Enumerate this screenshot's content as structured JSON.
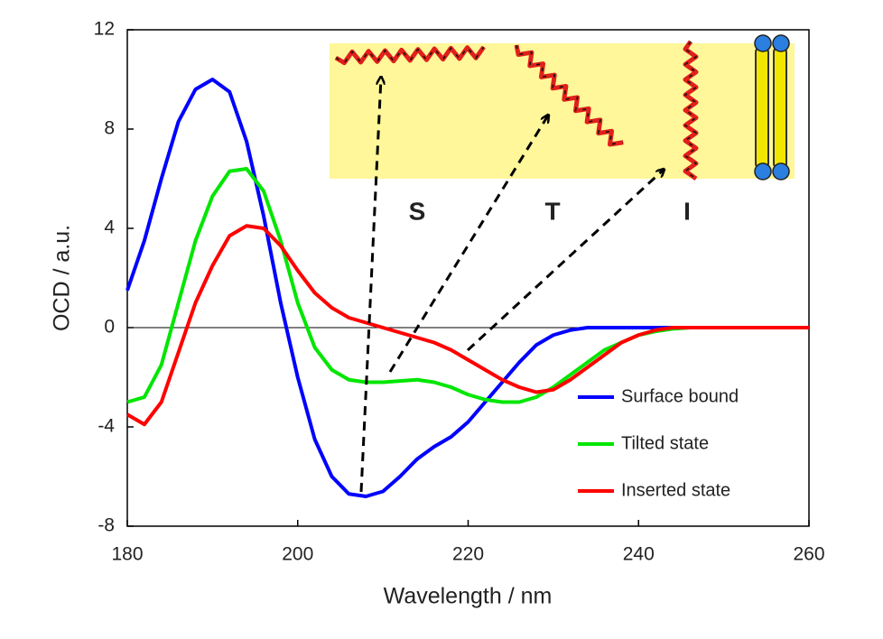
{
  "chart_data": {
    "type": "line",
    "xlabel": "Wavelength / nm",
    "ylabel": "OCD / a.u.",
    "x": [
      180,
      182,
      184,
      186,
      188,
      190,
      192,
      194,
      196,
      198,
      200,
      202,
      204,
      206,
      208,
      210,
      212,
      214,
      216,
      218,
      220,
      222,
      224,
      226,
      228,
      230,
      232,
      234,
      236,
      238,
      240,
      242,
      244,
      246,
      248,
      250,
      252,
      254,
      256,
      258,
      260
    ],
    "series": [
      {
        "name": "Surface bound",
        "color": "#0000ff",
        "values": [
          1.5,
          3.5,
          6,
          8.3,
          9.6,
          10,
          9.5,
          7.5,
          4.5,
          1,
          -2,
          -4.5,
          -6,
          -6.7,
          -6.8,
          -6.6,
          -6,
          -5.3,
          -4.8,
          -4.4,
          -3.8,
          -3,
          -2.2,
          -1.4,
          -0.7,
          -0.3,
          -0.1,
          0,
          0,
          0,
          0,
          0,
          0,
          0,
          0,
          0,
          0,
          0,
          0,
          0,
          0
        ]
      },
      {
        "name": "Tilted state",
        "color": "#00e600",
        "values": [
          -3,
          -2.8,
          -1.5,
          1,
          3.5,
          5.3,
          6.3,
          6.4,
          5.5,
          3.5,
          1,
          -0.8,
          -1.7,
          -2.1,
          -2.2,
          -2.2,
          -2.15,
          -2.1,
          -2.2,
          -2.4,
          -2.7,
          -2.9,
          -3,
          -3,
          -2.8,
          -2.4,
          -1.9,
          -1.4,
          -0.9,
          -0.6,
          -0.3,
          -0.15,
          -0.05,
          0,
          0,
          0,
          0,
          0,
          0,
          0,
          0
        ]
      },
      {
        "name": "Inserted state",
        "color": "#ff0000",
        "values": [
          -3.5,
          -3.9,
          -3,
          -1,
          1,
          2.5,
          3.7,
          4.1,
          4,
          3.3,
          2.3,
          1.4,
          0.8,
          0.4,
          0.2,
          0,
          -0.2,
          -0.4,
          -0.6,
          -0.9,
          -1.3,
          -1.7,
          -2.1,
          -2.4,
          -2.6,
          -2.5,
          -2.1,
          -1.6,
          -1.1,
          -0.6,
          -0.3,
          -0.1,
          0,
          0,
          0,
          0,
          0,
          0,
          0,
          0,
          0
        ]
      }
    ],
    "xlim": [
      180,
      260
    ],
    "xticks": [
      180,
      200,
      220,
      240,
      260
    ],
    "ylim": [
      -8,
      12
    ],
    "yticks": [
      -8,
      -4,
      0,
      4,
      8,
      12
    ],
    "annotations": [
      "S",
      "T",
      "I"
    ]
  }
}
